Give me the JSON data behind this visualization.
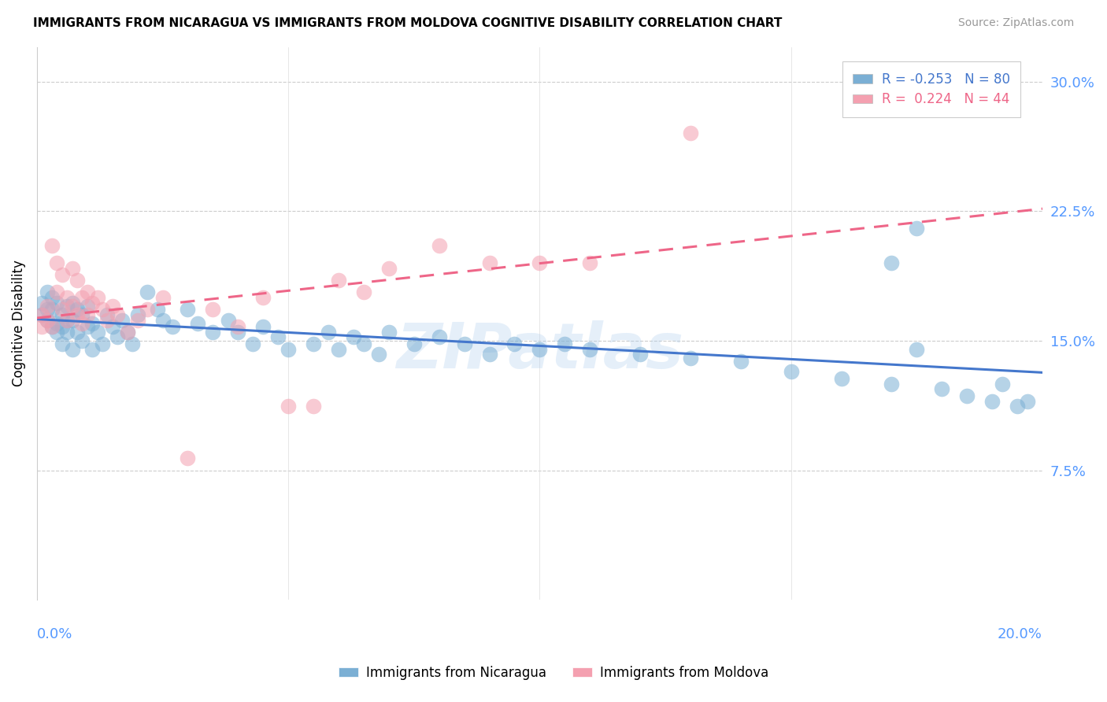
{
  "title": "IMMIGRANTS FROM NICARAGUA VS IMMIGRANTS FROM MOLDOVA COGNITIVE DISABILITY CORRELATION CHART",
  "source": "Source: ZipAtlas.com",
  "ylabel": "Cognitive Disability",
  "xlim": [
    0.0,
    0.2
  ],
  "ylim": [
    0.0,
    0.32
  ],
  "ytick_vals": [
    0.075,
    0.15,
    0.225,
    0.3
  ],
  "ytick_labels": [
    "7.5%",
    "15.0%",
    "22.5%",
    "30.0%"
  ],
  "watermark": "ZIPatlas",
  "nicaragua_color": "#7BAFD4",
  "moldova_color": "#F4A0B0",
  "nicaragua_line_color": "#4477CC",
  "moldova_line_color": "#EE6688",
  "nicaragua_R": -0.253,
  "nicaragua_N": 80,
  "moldova_R": 0.224,
  "moldova_N": 44,
  "nic_x": [
    0.001,
    0.001,
    0.002,
    0.002,
    0.002,
    0.003,
    0.003,
    0.003,
    0.004,
    0.004,
    0.004,
    0.005,
    0.005,
    0.005,
    0.006,
    0.006,
    0.006,
    0.007,
    0.007,
    0.007,
    0.008,
    0.008,
    0.009,
    0.009,
    0.01,
    0.01,
    0.011,
    0.011,
    0.012,
    0.013,
    0.014,
    0.015,
    0.016,
    0.017,
    0.018,
    0.019,
    0.02,
    0.022,
    0.024,
    0.025,
    0.027,
    0.03,
    0.032,
    0.035,
    0.038,
    0.04,
    0.043,
    0.045,
    0.048,
    0.05,
    0.055,
    0.058,
    0.06,
    0.063,
    0.065,
    0.068,
    0.07,
    0.075,
    0.08,
    0.085,
    0.09,
    0.095,
    0.1,
    0.105,
    0.11,
    0.12,
    0.13,
    0.14,
    0.15,
    0.16,
    0.17,
    0.175,
    0.18,
    0.185,
    0.19,
    0.192,
    0.195,
    0.197,
    0.17,
    0.175
  ],
  "nic_y": [
    0.165,
    0.172,
    0.168,
    0.162,
    0.178,
    0.175,
    0.168,
    0.158,
    0.16,
    0.155,
    0.172,
    0.158,
    0.165,
    0.148,
    0.162,
    0.155,
    0.17,
    0.145,
    0.162,
    0.172,
    0.168,
    0.155,
    0.165,
    0.15,
    0.17,
    0.158,
    0.145,
    0.16,
    0.155,
    0.148,
    0.165,
    0.158,
    0.152,
    0.162,
    0.155,
    0.148,
    0.165,
    0.178,
    0.168,
    0.162,
    0.158,
    0.168,
    0.16,
    0.155,
    0.162,
    0.155,
    0.148,
    0.158,
    0.152,
    0.145,
    0.148,
    0.155,
    0.145,
    0.152,
    0.148,
    0.142,
    0.155,
    0.148,
    0.152,
    0.148,
    0.142,
    0.148,
    0.145,
    0.148,
    0.145,
    0.142,
    0.14,
    0.138,
    0.132,
    0.128,
    0.125,
    0.145,
    0.122,
    0.118,
    0.115,
    0.125,
    0.112,
    0.115,
    0.195,
    0.215
  ],
  "mol_x": [
    0.001,
    0.001,
    0.002,
    0.002,
    0.003,
    0.003,
    0.004,
    0.004,
    0.005,
    0.005,
    0.006,
    0.006,
    0.007,
    0.007,
    0.008,
    0.008,
    0.009,
    0.009,
    0.01,
    0.01,
    0.011,
    0.012,
    0.013,
    0.014,
    0.015,
    0.016,
    0.018,
    0.02,
    0.022,
    0.025,
    0.03,
    0.035,
    0.04,
    0.045,
    0.05,
    0.055,
    0.06,
    0.065,
    0.07,
    0.08,
    0.09,
    0.1,
    0.11,
    0.13
  ],
  "mol_y": [
    0.165,
    0.158,
    0.17,
    0.162,
    0.205,
    0.158,
    0.178,
    0.195,
    0.188,
    0.168,
    0.175,
    0.162,
    0.192,
    0.17,
    0.185,
    0.165,
    0.175,
    0.16,
    0.178,
    0.165,
    0.172,
    0.175,
    0.168,
    0.162,
    0.17,
    0.165,
    0.155,
    0.162,
    0.168,
    0.175,
    0.082,
    0.168,
    0.158,
    0.175,
    0.112,
    0.112,
    0.185,
    0.178,
    0.192,
    0.205,
    0.195,
    0.195,
    0.195,
    0.27
  ]
}
